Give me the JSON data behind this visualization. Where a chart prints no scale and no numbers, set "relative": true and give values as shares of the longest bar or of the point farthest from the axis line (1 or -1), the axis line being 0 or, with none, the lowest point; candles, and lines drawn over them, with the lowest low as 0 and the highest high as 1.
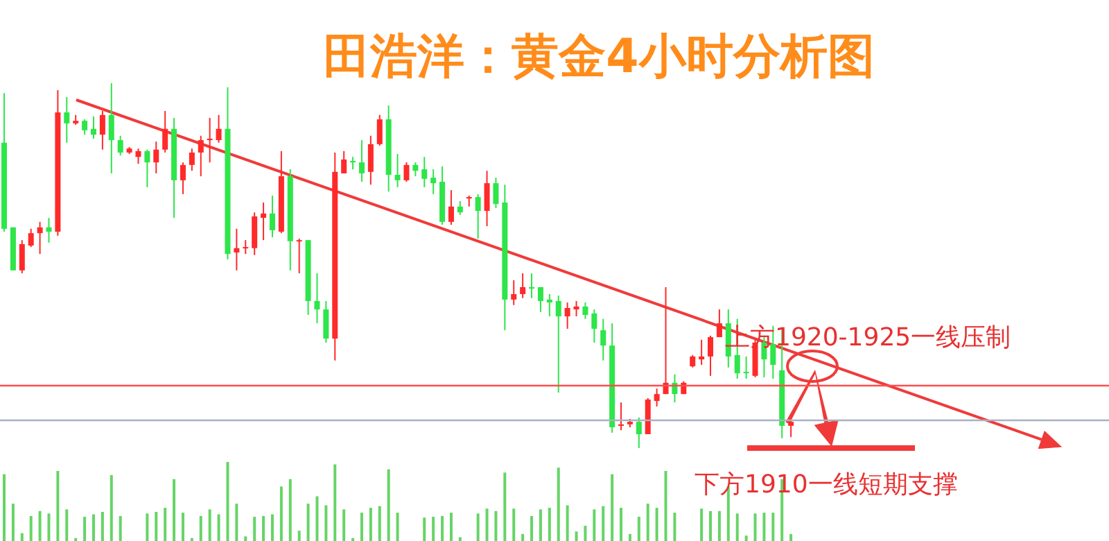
{
  "chart_data": [
    {
      "type": "candlestick",
      "title": "田浩洋：黄金4小时分析图",
      "relative": true,
      "categories": [
        null,
        null,
        null,
        null,
        null,
        null,
        null,
        null,
        null,
        null,
        null,
        null,
        null,
        null,
        null,
        null,
        null,
        null,
        null,
        null,
        null,
        null,
        null,
        null,
        null,
        null,
        null,
        null,
        null,
        null,
        null,
        null,
        null,
        null,
        null,
        null,
        null,
        null,
        null,
        null,
        null,
        null,
        null,
        null,
        null,
        null,
        null,
        null,
        null,
        null,
        null,
        null,
        null,
        null,
        null,
        null,
        null,
        null,
        null,
        null,
        null,
        null,
        null,
        null,
        null,
        null,
        null,
        null,
        null,
        null,
        null,
        null,
        null,
        null,
        null,
        null,
        null,
        null,
        null,
        null,
        null,
        null,
        null,
        null,
        null,
        null,
        null,
        null,
        null
      ],
      "ohlc": [
        [
          0.837,
          0.973,
          0.593,
          0.601
        ],
        [
          0.605,
          0.605,
          0.487,
          0.487
        ],
        [
          0.487,
          0.57,
          0.479,
          0.559
        ],
        [
          0.555,
          0.601,
          0.551,
          0.589
        ],
        [
          0.589,
          0.62,
          0.532,
          0.605
        ],
        [
          0.605,
          0.631,
          0.563,
          0.593
        ],
        [
          0.593,
          0.981,
          0.582,
          0.92
        ],
        [
          0.92,
          0.962,
          0.837,
          0.89
        ],
        [
          0.89,
          0.913,
          0.886,
          0.897
        ],
        [
          0.897,
          0.901,
          0.859,
          0.871
        ],
        [
          0.875,
          0.909,
          0.848,
          0.859
        ],
        [
          0.859,
          0.924,
          0.818,
          0.913
        ],
        [
          0.913,
          1,
          0.753,
          0.844
        ],
        [
          0.844,
          0.856,
          0.802,
          0.81
        ],
        [
          0.81,
          0.825,
          0.806,
          0.821
        ],
        [
          0.798,
          0.821,
          0.779,
          0.814
        ],
        [
          0.814,
          0.818,
          0.715,
          0.783
        ],
        [
          0.783,
          0.84,
          0.753,
          0.818
        ],
        [
          0.818,
          0.924,
          0.81,
          0.875
        ],
        [
          0.875,
          0.905,
          0.631,
          0.734
        ],
        [
          0.734,
          0.783,
          0.696,
          0.776
        ],
        [
          0.776,
          0.821,
          0.76,
          0.81
        ],
        [
          0.81,
          0.856,
          0.745,
          0.844
        ],
        [
          0.844,
          0.905,
          0.783,
          0.848
        ],
        [
          0.844,
          0.913,
          0.837,
          0.875
        ],
        [
          0.875,
          0.989,
          0.517,
          0.532
        ],
        [
          0.536,
          0.601,
          0.487,
          0.548
        ],
        [
          0.548,
          0.57,
          0.532,
          0.551
        ],
        [
          0.548,
          0.646,
          0.529,
          0.635
        ],
        [
          0.631,
          0.673,
          0.57,
          0.643
        ],
        [
          0.643,
          0.692,
          0.578,
          0.597
        ],
        [
          0.593,
          0.814,
          0.589,
          0.745
        ],
        [
          0.745,
          0.764,
          0.487,
          0.567
        ],
        [
          0.567,
          0.574,
          0.479,
          0.57
        ],
        [
          0.57,
          0.57,
          0.365,
          0.403
        ],
        [
          0.403,
          0.479,
          0.342,
          0.38
        ],
        [
          0.38,
          0.403,
          0.289,
          0.3
        ],
        [
          0.3,
          0.81,
          0.24,
          0.757
        ],
        [
          0.753,
          0.814,
          0.753,
          0.791
        ],
        [
          0.787,
          0.798,
          0.764,
          0.783
        ],
        [
          0.783,
          0.844,
          0.73,
          0.753
        ],
        [
          0.757,
          0.856,
          0.722,
          0.833
        ],
        [
          0.833,
          0.913,
          0.829,
          0.901
        ],
        [
          0.901,
          0.939,
          0.703,
          0.749
        ],
        [
          0.749,
          0.806,
          0.715,
          0.734
        ],
        [
          0.734,
          0.783,
          0.73,
          0.776
        ],
        [
          0.776,
          0.783,
          0.745,
          0.76
        ],
        [
          0.764,
          0.798,
          0.715,
          0.738
        ],
        [
          0.741,
          0.764,
          0.696,
          0.726
        ],
        [
          0.73,
          0.772,
          0.612,
          0.62
        ],
        [
          0.62,
          0.707,
          0.612,
          0.662
        ],
        [
          0.662,
          0.677,
          0.639,
          0.646
        ],
        [
          0.684,
          0.692,
          0.662,
          0.688
        ],
        [
          0.688,
          0.696,
          0.574,
          0.65
        ],
        [
          0.65,
          0.76,
          0.608,
          0.726
        ],
        [
          0.726,
          0.741,
          0.658,
          0.669
        ],
        [
          0.673,
          0.722,
          0.323,
          0.407
        ],
        [
          0.407,
          0.46,
          0.392,
          0.422
        ],
        [
          0.422,
          0.479,
          0.411,
          0.441
        ],
        [
          0.441,
          0.479,
          0.411,
          0.437
        ],
        [
          0.441,
          0.441,
          0.373,
          0.403
        ],
        [
          0.407,
          0.422,
          0.361,
          0.399
        ],
        [
          0.403,
          0.418,
          0.152,
          0.361
        ],
        [
          0.361,
          0.399,
          0.327,
          0.384
        ],
        [
          0.38,
          0.403,
          0.361,
          0.388
        ],
        [
          0.388,
          0.399,
          0.354,
          0.365
        ],
        [
          0.369,
          0.38,
          0.289,
          0.327
        ],
        [
          0.323,
          0.354,
          0.24,
          0.281
        ],
        [
          0.281,
          0.342,
          0.042,
          0.057
        ],
        [
          0.061,
          0.125,
          0.049,
          0.065
        ],
        [
          0.065,
          0.08,
          0.057,
          0.072
        ],
        [
          0.072,
          0.084,
          0,
          0.038
        ],
        [
          0.038,
          0.137,
          0.038,
          0.133
        ],
        [
          0.129,
          0.163,
          0.114,
          0.148
        ],
        [
          0.148,
          0.441,
          0.148,
          0.179
        ],
        [
          0.179,
          0.202,
          0.125,
          0.148
        ],
        [
          0.148,
          0.183,
          0.148,
          0.179
        ],
        [
          0.224,
          0.255,
          0.221,
          0.251
        ],
        [
          0.243,
          0.297,
          0.228,
          0.251
        ],
        [
          0.251,
          0.308,
          0.198,
          0.304
        ],
        [
          0.304,
          0.38,
          0.304,
          0.342
        ],
        [
          0.342,
          0.38,
          0.221,
          0.251
        ],
        [
          0.255,
          0.354,
          0.19,
          0.205
        ],
        [
          0.209,
          0.251,
          0.19,
          0.205
        ],
        [
          0.198,
          0.297,
          0.194,
          0.289
        ],
        [
          0.289,
          0.304,
          0.194,
          0.243
        ],
        [
          0.285,
          0.335,
          0.19,
          0.228
        ],
        [
          0.213,
          0.331,
          0.027,
          0.061
        ],
        [
          0.061,
          0.076,
          0.03,
          0.072
        ]
      ],
      "colors": [
        "#2ee54a",
        "#2ee54a",
        "#ff2a2a",
        "#ff2a2a",
        "#ff2a2a",
        "#2ee54a",
        "#ff2a2a",
        "#2ee54a",
        "#ff2a2a",
        "#2ee54a",
        "#2ee54a",
        "#ff2a2a",
        "#2ee54a",
        "#2ee54a",
        "#ff2a2a",
        "#ff2a2a",
        "#2ee54a",
        "#ff2a2a",
        "#ff2a2a",
        "#2ee54a",
        "#ff2a2a",
        "#ff2a2a",
        "#ff2a2a",
        "#ff2a2a",
        "#ff2a2a",
        "#2ee54a",
        "#ff2a2a",
        "#ff2a2a",
        "#ff2a2a",
        "#ff2a2a",
        "#2ee54a",
        "#ff2a2a",
        "#2ee54a",
        "#ff2a2a",
        "#2ee54a",
        "#2ee54a",
        "#2ee54a",
        "#ff2a2a",
        "#ff2a2a",
        "#2ee54a",
        "#2ee54a",
        "#ff2a2a",
        "#ff2a2a",
        "#2ee54a",
        "#2ee54a",
        "#ff2a2a",
        "#2ee54a",
        "#2ee54a",
        "#2ee54a",
        "#2ee54a",
        "#ff2a2a",
        "#2ee54a",
        "#ff2a2a",
        "#2ee54a",
        "#ff2a2a",
        "#2ee54a",
        "#2ee54a",
        "#ff2a2a",
        "#ff2a2a",
        "#2ee54a",
        "#2ee54a",
        "#2ee54a",
        "#2ee54a",
        "#ff2a2a",
        "#ff2a2a",
        "#2ee54a",
        "#2ee54a",
        "#2ee54a",
        "#2ee54a",
        "#ff2a2a",
        "#ff2a2a",
        "#2ee54a",
        "#ff2a2a",
        "#ff2a2a",
        "#ff2a2a",
        "#2ee54a",
        "#ff2a2a",
        "#ff2a2a",
        "#ff2a2a",
        "#ff2a2a",
        "#ff2a2a",
        "#2ee54a",
        "#2ee54a",
        "#2ee54a",
        "#ff2a2a",
        "#2ee54a",
        "#2ee54a",
        "#2ee54a",
        "#ff2a2a"
      ],
      "ref_lines": [
        {
          "axis": "y",
          "value": 0.171,
          "color": "#ff4d4d"
        },
        {
          "axis": "y",
          "value": 0.076,
          "color": "#a9b1c2"
        }
      ],
      "annotations": [
        "上方1920-1925一线压制",
        "下方1910一线短期支撑"
      ]
    },
    {
      "type": "bar",
      "relative": true,
      "color": "#66d466",
      "categories": [
        null,
        null,
        null,
        null,
        null,
        null,
        null,
        null,
        null,
        null,
        null,
        null,
        null,
        null,
        null,
        null,
        null,
        null,
        null,
        null,
        null,
        null,
        null,
        null,
        null,
        null,
        null,
        null,
        null,
        null,
        null,
        null,
        null,
        null,
        null,
        null,
        null,
        null,
        null,
        null,
        null,
        null,
        null,
        null,
        null,
        null,
        null,
        null,
        null,
        null,
        null,
        null,
        null,
        null,
        null,
        null,
        null,
        null,
        null,
        null,
        null,
        null,
        null,
        null,
        null,
        null,
        null,
        null,
        null,
        null,
        null,
        null,
        null,
        null,
        null,
        null,
        null,
        null,
        null,
        null,
        null,
        null,
        null,
        null,
        null,
        null,
        null,
        null,
        null
      ],
      "values": [
        0.85,
        0.49,
        0.13,
        0.34,
        0.4,
        0.37,
        0.89,
        0.42,
        0.07,
        0.33,
        0.36,
        0.39,
        0.84,
        0.34,
        null,
        null,
        0.37,
        0.39,
        0.44,
        0.79,
        0.38,
        0.07,
        0.34,
        0.42,
        0.36,
        1,
        0.49,
        0.09,
        0.33,
        0.34,
        0.36,
        0.7,
        0.79,
        0.16,
        0.49,
        0.58,
        0.47,
        0.97,
        0.42,
        0.07,
        0.38,
        0.44,
        0.46,
        0.91,
        0.38,
        null,
        null,
        0.32,
        0.33,
        0.34,
        0.38,
        0.08,
        null,
        0.37,
        0.43,
        0.4,
        0.87,
        0.43,
        0.12,
        0.34,
        0.42,
        0.44,
        0.93,
        0.47,
        0.15,
        0.22,
        0.42,
        0.46,
        0.85,
        0.44,
        0.12,
        0.33,
        0.49,
        0.44,
        0.89,
        0.38,
        null,
        null,
        0.43,
        0.4,
        0.4,
        0.7,
        0.37,
        0.1,
        0.37,
        0.38,
        0.38,
        0.79,
        0.12
      ]
    }
  ]
}
